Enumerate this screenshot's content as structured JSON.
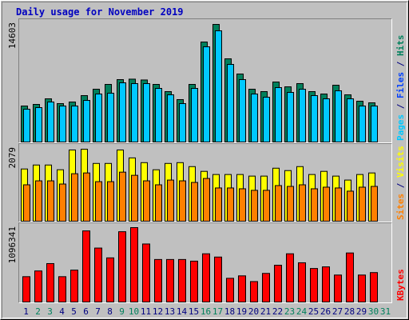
{
  "title": "Daily usage for November 2019",
  "chart_data": [
    {
      "type": "bar",
      "ylim": [
        0,
        14603
      ],
      "yticks": [
        14603
      ],
      "y_label": [
        "Pages",
        "/",
        "Files",
        "/",
        "Hits"
      ],
      "y_label_colors": [
        "#00c8ff",
        "#000080",
        "#0040ff",
        "#000080",
        "#00805c"
      ],
      "series": [
        {
          "name": "Hits",
          "color": "#00805c",
          "values": [
            4410,
            4606,
            5292,
            4704,
            4900,
            5684,
            6468,
            7056,
            7644,
            7700,
            7600,
            7056,
            6174,
            5194,
            7056,
            12250,
            14406,
            10192,
            8330,
            6468,
            6174,
            7350,
            6762,
            7154,
            6174,
            5880,
            6958,
            5782,
            4998,
            4802,
            null
          ]
        },
        {
          "name": "Pages",
          "color": "#00c8ff",
          "values": [
            4018,
            4214,
            4900,
            4410,
            4410,
            5096,
            5880,
            5978,
            7252,
            7154,
            7154,
            6566,
            5782,
            4704,
            6566,
            11662,
            13622,
            9506,
            7644,
            5880,
            5488,
            6664,
            6076,
            6468,
            5684,
            5292,
            6272,
            5292,
            4410,
            4410,
            null
          ]
        }
      ]
    },
    {
      "type": "bar",
      "ylim": [
        0,
        2079
      ],
      "yticks": [
        2079
      ],
      "y_label": [
        "Sites",
        "/",
        "Visits"
      ],
      "y_label_colors": [
        "#ff8000",
        "#000080",
        "#ffff00"
      ],
      "series": [
        {
          "name": "Visits",
          "color": "#ffff00",
          "values": [
            1475,
            1587,
            1587,
            1453,
            2012,
            2034,
            1632,
            1632,
            2012,
            1788,
            1654,
            1453,
            1632,
            1654,
            1542,
            1408,
            1319,
            1319,
            1319,
            1274,
            1274,
            1497,
            1430,
            1542,
            1319,
            1408,
            1274,
            1162,
            1319,
            1363,
            null
          ]
        },
        {
          "name": "Sites",
          "color": "#ff8000",
          "values": [
            1028,
            1140,
            1140,
            1050,
            1341,
            1363,
            1117,
            1117,
            1386,
            1296,
            1140,
            1028,
            1162,
            1140,
            1095,
            1207,
            939,
            939,
            916,
            872,
            872,
            1006,
            983,
            1028,
            916,
            961,
            939,
            849,
            961,
            983,
            null
          ]
        }
      ]
    },
    {
      "type": "bar",
      "ylim": [
        0,
        1096341
      ],
      "yticks": [
        1096341
      ],
      "y_label": [
        "KBytes"
      ],
      "y_label_colors": [
        "#ff0000"
      ],
      "categories": [
        "1",
        "2",
        "3",
        "4",
        "5",
        "6",
        "7",
        "8",
        "9",
        "10",
        "11",
        "12",
        "13",
        "14",
        "15",
        "16",
        "17",
        "18",
        "19",
        "20",
        "21",
        "22",
        "23",
        "24",
        "25",
        "26",
        "27",
        "28",
        "29",
        "30",
        "31"
      ],
      "category_colors": [
        "#000080",
        "#00805c",
        "#00805c",
        "#000080",
        "#000080",
        "#000080",
        "#000080",
        "#000080",
        "#00805c",
        "#00805c",
        "#000080",
        "#000080",
        "#000080",
        "#000080",
        "#000080",
        "#00805c",
        "#00805c",
        "#000080",
        "#000080",
        "#000080",
        "#000080",
        "#000080",
        "#00805c",
        "#00805c",
        "#000080",
        "#000080",
        "#000080",
        "#000080",
        "#000080",
        "#00805c",
        "#00805c"
      ],
      "series": [
        {
          "name": "KBytes",
          "color": "#ff0000",
          "values": [
            369427,
            452846,
            560099,
            369427,
            464763,
            1036779,
            786522,
            643518,
            1024862,
            1084447,
            846107,
            619684,
            619684,
            619684,
            595850,
            703103,
            655435,
            345593,
            381344,
            297925,
            417095,
            536265,
            703103,
            572016,
            488597,
            512431,
            393261,
            715020,
            393261,
            429012,
            null
          ]
        }
      ]
    }
  ]
}
